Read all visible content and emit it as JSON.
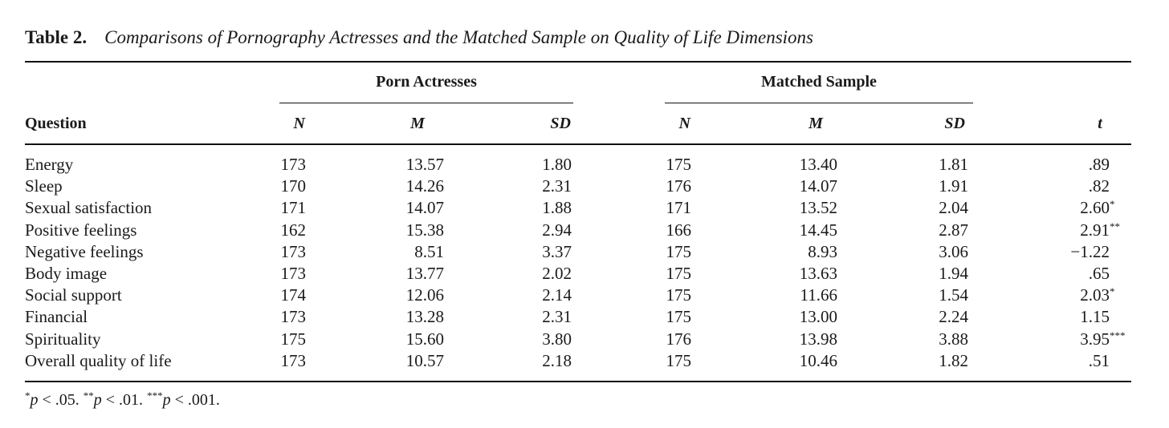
{
  "table": {
    "label": "Table 2.",
    "title": "Comparisons of Pornography Actresses and the Matched Sample on Quality of Life Dimensions",
    "group_headers": [
      "Porn Actresses",
      "Matched Sample"
    ],
    "column_headers": [
      "Question",
      "N",
      "M",
      "SD",
      "N",
      "M",
      "SD",
      "t"
    ],
    "rows": [
      {
        "question": "Energy",
        "n1": "173",
        "m1": "13.57",
        "sd1": "1.80",
        "n2": "175",
        "m2": "13.40",
        "sd2": "1.81",
        "t": ".89",
        "sig": ""
      },
      {
        "question": "Sleep",
        "n1": "170",
        "m1": "14.26",
        "sd1": "2.31",
        "n2": "176",
        "m2": "14.07",
        "sd2": "1.91",
        "t": ".82",
        "sig": ""
      },
      {
        "question": "Sexual satisfaction",
        "n1": "171",
        "m1": "14.07",
        "sd1": "1.88",
        "n2": "171",
        "m2": "13.52",
        "sd2": "2.04",
        "t": "2.60",
        "sig": "*"
      },
      {
        "question": "Positive feelings",
        "n1": "162",
        "m1": "15.38",
        "sd1": "2.94",
        "n2": "166",
        "m2": "14.45",
        "sd2": "2.87",
        "t": "2.91",
        "sig": "**"
      },
      {
        "question": "Negative feelings",
        "n1": "173",
        "m1": "8.51",
        "sd1": "3.37",
        "n2": "175",
        "m2": "8.93",
        "sd2": "3.06",
        "t": "−1.22",
        "sig": ""
      },
      {
        "question": "Body image",
        "n1": "173",
        "m1": "13.77",
        "sd1": "2.02",
        "n2": "175",
        "m2": "13.63",
        "sd2": "1.94",
        "t": ".65",
        "sig": ""
      },
      {
        "question": "Social support",
        "n1": "174",
        "m1": "12.06",
        "sd1": "2.14",
        "n2": "175",
        "m2": "11.66",
        "sd2": "1.54",
        "t": "2.03",
        "sig": "*"
      },
      {
        "question": "Financial",
        "n1": "173",
        "m1": "13.28",
        "sd1": "2.31",
        "n2": "175",
        "m2": "13.00",
        "sd2": "2.24",
        "t": "1.15",
        "sig": ""
      },
      {
        "question": "Spirituality",
        "n1": "175",
        "m1": "15.60",
        "sd1": "3.80",
        "n2": "176",
        "m2": "13.98",
        "sd2": "3.88",
        "t": "3.95",
        "sig": "***"
      },
      {
        "question": "Overall quality of life",
        "n1": "173",
        "m1": "10.57",
        "sd1": "2.18",
        "n2": "175",
        "m2": "10.46",
        "sd2": "1.82",
        "t": ".51",
        "sig": ""
      }
    ],
    "footnote": [
      {
        "mark": "*",
        "p": "p",
        "text": " < .05. "
      },
      {
        "mark": "**",
        "p": "p",
        "text": " < .01. "
      },
      {
        "mark": "***",
        "p": "p",
        "text": " < .001."
      }
    ]
  }
}
